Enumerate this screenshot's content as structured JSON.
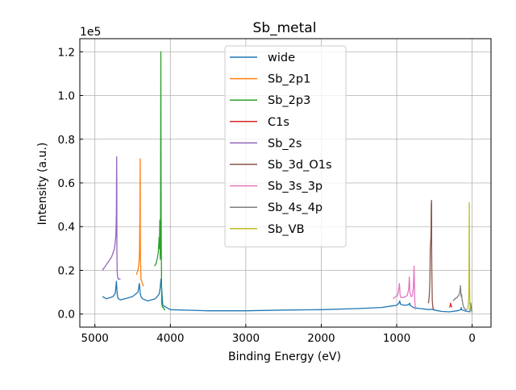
{
  "chart_data": {
    "type": "line",
    "title": "Sb_metal",
    "xlabel": "Binding Energy (eV)",
    "ylabel": "Intensity (a.u.)",
    "y_scale_label": "1e5",
    "xlim": [
      5200,
      -250
    ],
    "ylim": [
      -6000,
      126000
    ],
    "x_reversed": true,
    "grid": true,
    "legend_position": "top-center",
    "x_ticks": [
      5000,
      4000,
      3000,
      2000,
      1000,
      0
    ],
    "x_tick_labels": [
      "5000",
      "4000",
      "3000",
      "2000",
      "1000",
      "0"
    ],
    "y_ticks": [
      0,
      20000,
      40000,
      60000,
      80000,
      100000,
      120000
    ],
    "y_tick_labels": [
      "0.0",
      "0.2",
      "0.4",
      "0.6",
      "0.8",
      "1.0",
      "1.2"
    ],
    "series": [
      {
        "name": "wide",
        "color": "#1f77b4",
        "x": [
          4900,
          4850,
          4800,
          4760,
          4730,
          4715,
          4708,
          4700,
          4690,
          4660,
          4600,
          4500,
          4430,
          4410,
          4400,
          4390,
          4370,
          4300,
          4200,
          4150,
          4135,
          4125,
          4115,
          4100,
          4050,
          4000,
          3500,
          3000,
          2500,
          2000,
          1500,
          1200,
          1100,
          1000,
          970,
          960,
          950,
          900,
          840,
          830,
          820,
          800,
          780,
          700,
          600,
          560,
          540,
          520,
          500,
          450,
          400,
          300,
          200,
          150,
          145,
          140,
          100,
          60,
          40,
          30,
          20,
          10,
          0
        ],
        "values": [
          8000,
          7000,
          7500,
          8000,
          9500,
          15000,
          11000,
          8000,
          7000,
          6500,
          7000,
          8000,
          10000,
          14000,
          9500,
          8000,
          7000,
          6000,
          7000,
          9000,
          12000,
          16000,
          12000,
          4000,
          3000,
          2000,
          1500,
          1500,
          1800,
          2000,
          2500,
          3000,
          3500,
          4000,
          5000,
          6000,
          4500,
          4000,
          4200,
          5000,
          4000,
          3500,
          3000,
          2500,
          2200,
          2000,
          2200,
          2000,
          1800,
          1500,
          1200,
          1000,
          1500,
          2000,
          3000,
          2000,
          1500,
          1200,
          1000,
          1200,
          5000,
          2000,
          500
        ]
      },
      {
        "name": "Sb_2p1",
        "color": "#ff7f0e",
        "x": [
          4450,
          4440,
          4430,
          4420,
          4412,
          4408,
          4404,
          4400,
          4398,
          4396,
          4393,
          4390,
          4380,
          4370,
          4360,
          4350
        ],
        "values": [
          18000,
          19000,
          20000,
          22000,
          25000,
          30000,
          45000,
          71000,
          40000,
          25000,
          22000,
          16000,
          15000,
          14000,
          13000,
          13000
        ]
      },
      {
        "name": "Sb_2p3",
        "color": "#2ca02c",
        "x": [
          4210,
          4190,
          4170,
          4160,
          4150,
          4145,
          4140,
          4135,
          4132,
          4130,
          4126,
          4124,
          4122,
          4120,
          4118,
          4115,
          4110,
          4100,
          4090,
          4080,
          4070
        ],
        "values": [
          22000,
          23000,
          26000,
          28000,
          35000,
          30000,
          43000,
          25000,
          30000,
          40000,
          120000,
          80000,
          45000,
          30000,
          20000,
          5000,
          4000,
          3000,
          3000,
          2000,
          2000
        ]
      },
      {
        "name": "C1s",
        "color": "#d62728",
        "x": [
          300,
          295,
          290,
          285,
          280,
          275,
          270
        ],
        "values": [
          3000,
          3500,
          4000,
          5000,
          4000,
          3500,
          3000
        ]
      },
      {
        "name": "Sb_2s",
        "color": "#9467bd",
        "x": [
          4900,
          4880,
          4860,
          4840,
          4820,
          4800,
          4780,
          4760,
          4740,
          4730,
          4722,
          4716,
          4712,
          4710,
          4708,
          4705,
          4700,
          4690,
          4680,
          4660
        ],
        "values": [
          20000,
          21000,
          22000,
          23000,
          24000,
          25000,
          26000,
          28000,
          30000,
          33000,
          36000,
          45000,
          72000,
          60000,
          30000,
          20000,
          17000,
          16000,
          16000,
          16000
        ]
      },
      {
        "name": "Sb_3d_O1s",
        "color": "#8c564b",
        "x": [
          580,
          575,
          570,
          565,
          560,
          555,
          545,
          542,
          538,
          536,
          534,
          532,
          530,
          528,
          520,
          510,
          500
        ],
        "values": [
          5000,
          6000,
          8000,
          10000,
          15000,
          30000,
          36000,
          50000,
          52000,
          30000,
          20000,
          15000,
          10000,
          6000,
          3000,
          2000,
          2000
        ]
      },
      {
        "name": "Sb_3s_3p",
        "color": "#e377c2",
        "x": [
          1050,
          1030,
          1010,
          990,
          980,
          970,
          965,
          960,
          955,
          950,
          940,
          920,
          900,
          880,
          860,
          850,
          840,
          832,
          828,
          825,
          820,
          810,
          800,
          790,
          780,
          770,
          765,
          760,
          755,
          750
        ],
        "values": [
          7000,
          7500,
          8000,
          8500,
          10000,
          12000,
          14000,
          12000,
          9000,
          8000,
          7500,
          7500,
          7800,
          8000,
          8500,
          10000,
          12000,
          17000,
          14000,
          10000,
          9000,
          8000,
          8000,
          9000,
          12000,
          22000,
          15000,
          6000,
          3000,
          2000
        ]
      },
      {
        "name": "Sb_4s_4p",
        "color": "#7f7f7f",
        "x": [
          250,
          240,
          230,
          220,
          210,
          200,
          190,
          180,
          170,
          160,
          155,
          150,
          145,
          140,
          135,
          130,
          125,
          120,
          115,
          110,
          100,
          90,
          80,
          70
        ],
        "values": [
          6000,
          6500,
          7000,
          7000,
          7500,
          7500,
          8000,
          8500,
          9000,
          11000,
          13000,
          10000,
          8000,
          9000,
          7000,
          6000,
          5000,
          4000,
          3500,
          3000,
          2500,
          2000,
          2000,
          2000
        ]
      },
      {
        "name": "Sb_VB",
        "color": "#bcbd22",
        "x": [
          60,
          55,
          50,
          45,
          42,
          40,
          38,
          36,
          34,
          32,
          30,
          28,
          25,
          20,
          15,
          10,
          5,
          0
        ],
        "values": [
          2000,
          3000,
          5000,
          8000,
          15000,
          30000,
          51000,
          40000,
          20000,
          10000,
          6000,
          4000,
          3000,
          2500,
          2000,
          1500,
          1000,
          500
        ]
      }
    ]
  }
}
